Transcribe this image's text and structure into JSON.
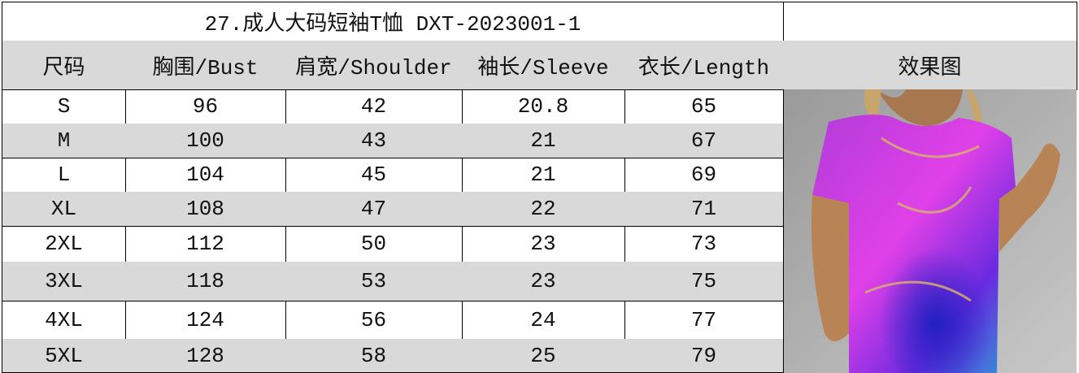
{
  "header": {
    "title": "27.成人大码短袖T恤 DXT-2023001-1"
  },
  "table": {
    "columns": [
      "尺码",
      "胸围/Bust",
      "肩宽/Shoulder",
      "袖长/Sleeve",
      "衣长/Length",
      "效果图"
    ],
    "rows": [
      [
        "S",
        96,
        42,
        20.8,
        65
      ],
      [
        "M",
        100,
        43,
        21,
        67
      ],
      [
        "L",
        104,
        45,
        21,
        69
      ],
      [
        "XL",
        108,
        47,
        22,
        71
      ],
      [
        "2XL",
        112,
        50,
        23,
        73
      ],
      [
        "3XL",
        118,
        53,
        23,
        75
      ],
      [
        "4XL",
        124,
        56,
        24,
        77
      ],
      [
        "5XL",
        128,
        58,
        25,
        79
      ]
    ]
  }
}
